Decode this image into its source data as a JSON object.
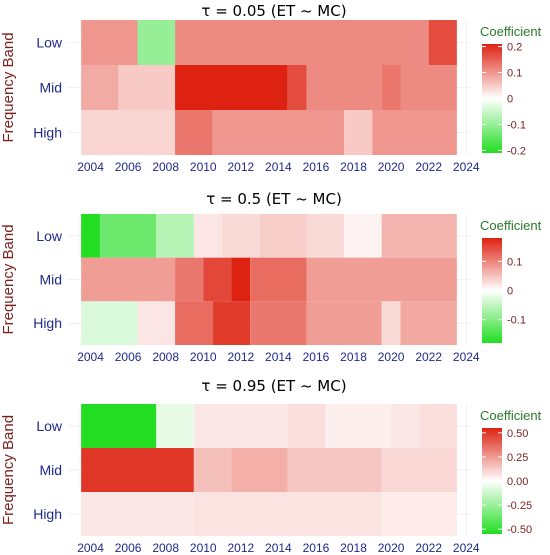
{
  "chart_data": [
    {
      "type": "heatmap",
      "title": "τ = 0.05  (ET ~ MC)",
      "ylabel": "Frequency Band",
      "xlabel": "",
      "x_ticks": [
        "2004",
        "2006",
        "2008",
        "2010",
        "2012",
        "2014",
        "2016",
        "2018",
        "2020",
        "2022",
        "2024"
      ],
      "xlim": [
        2002.8,
        2024.2
      ],
      "y_categories": [
        "Low",
        "Mid",
        "High"
      ],
      "legend": {
        "title": "Coefficient",
        "position": "right",
        "ticks": [
          0.2,
          0.1,
          0.0,
          -0.1,
          -0.2
        ],
        "range": [
          -0.21,
          0.21
        ]
      },
      "colors": {
        "neg": "#22dd22",
        "zero": "#ffffff",
        "pos": "#dd2211"
      },
      "cells": [
        {
          "band": "Low",
          "x0": 2003.5,
          "x1": 2006.5,
          "value": 0.1
        },
        {
          "band": "Low",
          "x0": 2006.5,
          "x1": 2008.5,
          "value": -0.1
        },
        {
          "band": "Low",
          "x0": 2008.5,
          "x1": 2022.0,
          "value": 0.11
        },
        {
          "band": "Low",
          "x0": 2022.0,
          "x1": 2023.5,
          "value": 0.17
        },
        {
          "band": "Mid",
          "x0": 2003.5,
          "x1": 2005.5,
          "value": 0.08
        },
        {
          "band": "Mid",
          "x0": 2005.5,
          "x1": 2008.5,
          "value": 0.05
        },
        {
          "band": "Mid",
          "x0": 2008.5,
          "x1": 2014.5,
          "value": 0.21
        },
        {
          "band": "Mid",
          "x0": 2014.5,
          "x1": 2015.5,
          "value": 0.17
        },
        {
          "band": "Mid",
          "x0": 2015.5,
          "x1": 2019.5,
          "value": 0.11
        },
        {
          "band": "Mid",
          "x0": 2019.5,
          "x1": 2020.5,
          "value": 0.13
        },
        {
          "band": "Mid",
          "x0": 2020.5,
          "x1": 2023.5,
          "value": 0.11
        },
        {
          "band": "High",
          "x0": 2003.5,
          "x1": 2008.5,
          "value": 0.04
        },
        {
          "band": "High",
          "x0": 2008.5,
          "x1": 2010.5,
          "value": 0.13
        },
        {
          "band": "High",
          "x0": 2010.5,
          "x1": 2017.5,
          "value": 0.1
        },
        {
          "band": "High",
          "x0": 2017.5,
          "x1": 2019.0,
          "value": 0.05
        },
        {
          "band": "High",
          "x0": 2019.0,
          "x1": 2023.5,
          "value": 0.1
        }
      ]
    },
    {
      "type": "heatmap",
      "title": "τ = 0.5  (ET ~ MC)",
      "ylabel": "Frequency Band",
      "xlabel": "",
      "x_ticks": [
        "2004",
        "2006",
        "2008",
        "2010",
        "2012",
        "2014",
        "2016",
        "2018",
        "2020",
        "2022",
        "2024"
      ],
      "xlim": [
        2002.8,
        2024.2
      ],
      "y_categories": [
        "Low",
        "Mid",
        "High"
      ],
      "legend": {
        "title": "Coefficient",
        "position": "right",
        "ticks": [
          0.1,
          0.0,
          -0.1
        ],
        "range": [
          -0.18,
          0.18
        ]
      },
      "colors": {
        "neg": "#22dd22",
        "zero": "#ffffff",
        "pos": "#dd2211"
      },
      "cells": [
        {
          "band": "Low",
          "x0": 2003.5,
          "x1": 2004.5,
          "value": -0.18
        },
        {
          "band": "Low",
          "x0": 2004.5,
          "x1": 2007.5,
          "value": -0.12
        },
        {
          "band": "Low",
          "x0": 2007.5,
          "x1": 2009.5,
          "value": -0.06
        },
        {
          "band": "Low",
          "x0": 2009.5,
          "x1": 2011.0,
          "value": 0.02
        },
        {
          "band": "Low",
          "x0": 2011.0,
          "x1": 2013.0,
          "value": 0.03
        },
        {
          "band": "Low",
          "x0": 2013.0,
          "x1": 2015.5,
          "value": 0.04
        },
        {
          "band": "Low",
          "x0": 2015.5,
          "x1": 2017.5,
          "value": 0.03
        },
        {
          "band": "Low",
          "x0": 2017.5,
          "x1": 2019.5,
          "value": 0.01
        },
        {
          "band": "Low",
          "x0": 2019.5,
          "x1": 2023.5,
          "value": 0.06
        },
        {
          "band": "Mid",
          "x0": 2003.5,
          "x1": 2008.5,
          "value": 0.08
        },
        {
          "band": "Mid",
          "x0": 2008.5,
          "x1": 2010.0,
          "value": 0.11
        },
        {
          "band": "Mid",
          "x0": 2010.0,
          "x1": 2011.5,
          "value": 0.15
        },
        {
          "band": "Mid",
          "x0": 2011.5,
          "x1": 2012.5,
          "value": 0.18
        },
        {
          "band": "Mid",
          "x0": 2012.5,
          "x1": 2015.5,
          "value": 0.12
        },
        {
          "band": "Mid",
          "x0": 2015.5,
          "x1": 2023.5,
          "value": 0.08
        },
        {
          "band": "High",
          "x0": 2003.5,
          "x1": 2006.5,
          "value": -0.03
        },
        {
          "band": "High",
          "x0": 2006.5,
          "x1": 2008.5,
          "value": 0.02
        },
        {
          "band": "High",
          "x0": 2008.5,
          "x1": 2010.5,
          "value": 0.12
        },
        {
          "band": "High",
          "x0": 2010.5,
          "x1": 2012.5,
          "value": 0.16
        },
        {
          "band": "High",
          "x0": 2012.5,
          "x1": 2015.5,
          "value": 0.11
        },
        {
          "band": "High",
          "x0": 2015.5,
          "x1": 2019.5,
          "value": 0.08
        },
        {
          "band": "High",
          "x0": 2019.5,
          "x1": 2020.5,
          "value": 0.03
        },
        {
          "band": "High",
          "x0": 2020.5,
          "x1": 2023.5,
          "value": 0.07
        }
      ]
    },
    {
      "type": "heatmap",
      "title": "τ = 0.95  (ET ~ MC)",
      "ylabel": "Frequency Band",
      "xlabel": "",
      "x_ticks": [
        "2004",
        "2006",
        "2008",
        "2010",
        "2012",
        "2014",
        "2016",
        "2018",
        "2020",
        "2022",
        "2024"
      ],
      "xlim": [
        2002.8,
        2024.2
      ],
      "y_categories": [
        "Low",
        "Mid",
        "High"
      ],
      "legend": {
        "title": "Coefficient",
        "position": "right",
        "ticks": [
          0.5,
          0.25,
          0.0,
          -0.25,
          -0.5
        ],
        "ticklabels": [
          "0.50",
          "0.25",
          "0.00",
          "-0.25",
          "-0.50"
        ],
        "range": [
          -0.55,
          0.55
        ]
      },
      "colors": {
        "neg": "#22dd22",
        "zero": "#ffffff",
        "pos": "#dd2211"
      },
      "cells": [
        {
          "band": "Low",
          "x0": 2003.5,
          "x1": 2007.5,
          "value": -0.55
        },
        {
          "band": "Low",
          "x0": 2007.5,
          "x1": 2009.5,
          "value": -0.06
        },
        {
          "band": "Low",
          "x0": 2009.5,
          "x1": 2014.5,
          "value": 0.06
        },
        {
          "band": "Low",
          "x0": 2014.5,
          "x1": 2016.5,
          "value": 0.08
        },
        {
          "band": "Low",
          "x0": 2016.5,
          "x1": 2020.0,
          "value": 0.04
        },
        {
          "band": "Low",
          "x0": 2020.0,
          "x1": 2021.5,
          "value": 0.06
        },
        {
          "band": "Low",
          "x0": 2021.5,
          "x1": 2023.5,
          "value": 0.08
        },
        {
          "band": "Mid",
          "x0": 2003.5,
          "x1": 2009.5,
          "value": 0.5
        },
        {
          "band": "Mid",
          "x0": 2009.5,
          "x1": 2011.5,
          "value": 0.16
        },
        {
          "band": "Mid",
          "x0": 2011.5,
          "x1": 2014.5,
          "value": 0.2
        },
        {
          "band": "Mid",
          "x0": 2014.5,
          "x1": 2019.5,
          "value": 0.14
        },
        {
          "band": "Mid",
          "x0": 2019.5,
          "x1": 2023.5,
          "value": 0.1
        },
        {
          "band": "High",
          "x0": 2003.5,
          "x1": 2009.5,
          "value": 0.06
        },
        {
          "band": "High",
          "x0": 2009.5,
          "x1": 2019.5,
          "value": 0.07
        },
        {
          "band": "High",
          "x0": 2019.5,
          "x1": 2023.5,
          "value": 0.05
        }
      ]
    }
  ]
}
